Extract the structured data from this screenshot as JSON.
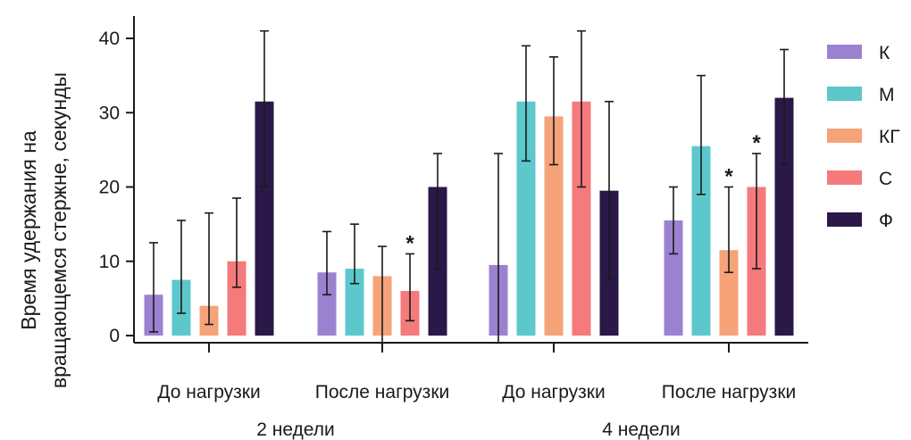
{
  "chart_data": {
    "type": "bar",
    "ylabel_lines": [
      "Время удержания на",
      "вращающемся стержне, секунды"
    ],
    "ylim": [
      0,
      43
    ],
    "yticks": [
      0,
      10,
      20,
      30,
      40
    ],
    "categories": [
      "До нагрузки",
      "После нагрузки",
      "До нагрузки",
      "После нагрузки"
    ],
    "groups": [
      "2 недели",
      "4 недели"
    ],
    "legend_position": "right",
    "series": [
      {
        "name": "К",
        "color": "#9b82d0",
        "values": [
          5.5,
          8.5,
          9.5,
          15.5
        ],
        "error_low": [
          0.5,
          5.5,
          -1,
          11
        ],
        "error_high": [
          12.5,
          14,
          24.5,
          20
        ],
        "significant": [
          false,
          false,
          false,
          false
        ]
      },
      {
        "name": "М",
        "color": "#5dc8cc",
        "values": [
          7.5,
          9,
          31.5,
          25.5
        ],
        "error_low": [
          3,
          7,
          23.5,
          19
        ],
        "error_high": [
          15.5,
          15,
          39,
          35
        ],
        "significant": [
          false,
          false,
          false,
          false
        ]
      },
      {
        "name": "КГ",
        "color": "#f6a37a",
        "values": [
          4,
          8,
          29.5,
          11.5
        ],
        "error_low": [
          1.5,
          -1,
          23,
          8.5
        ],
        "error_high": [
          16.5,
          12,
          37.5,
          20
        ],
        "significant": [
          false,
          false,
          false,
          true
        ]
      },
      {
        "name": "С",
        "color": "#f47a7c",
        "values": [
          10,
          6,
          31.5,
          20
        ],
        "error_low": [
          6.5,
          2,
          20,
          9
        ],
        "error_high": [
          18.5,
          11,
          41,
          24.5
        ],
        "significant": [
          false,
          true,
          false,
          true
        ]
      },
      {
        "name": "Ф",
        "color": "#2a1848",
        "values": [
          31.5,
          20,
          19.5,
          32
        ],
        "error_low": [
          20,
          9,
          7.5,
          23
        ],
        "error_high": [
          41,
          24.5,
          31.5,
          38.5
        ],
        "significant": [
          false,
          false,
          false,
          false
        ]
      }
    ],
    "significance_marker": "*"
  }
}
